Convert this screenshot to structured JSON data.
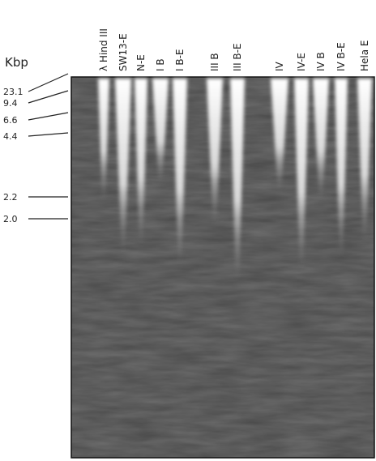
{
  "unit_label": "Kbp",
  "lanes": [
    "λ Hind III",
    "SW13-E",
    "N-E",
    "I B",
    "I B-E",
    "III B",
    "III B-E",
    "IV",
    "IV-E",
    "IV B",
    "IV B-E",
    "Hela E"
  ],
  "size_markers": [
    "23.1",
    "9.4",
    "6.6",
    "4.4",
    "2.2",
    "2.0"
  ]
}
